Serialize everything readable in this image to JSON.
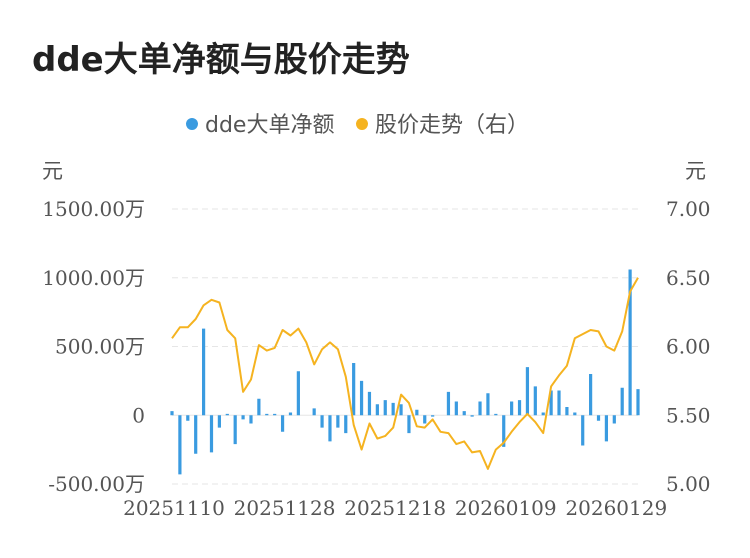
{
  "title": "dde大单净额与股价走势",
  "chart_data": {
    "type": "bar+line",
    "legend": [
      {
        "name": "dde大单净额",
        "color": "#3a9be0"
      },
      {
        "name": "股价走势（右）",
        "color": "#f5b320"
      }
    ],
    "legend_position": "top-center",
    "y_left": {
      "unit": "元",
      "ylim": [
        -500,
        1500
      ],
      "ticks": [
        {
          "v": 1500,
          "label": "1500.00万"
        },
        {
          "v": 1000,
          "label": "1000.00万"
        },
        {
          "v": 500,
          "label": "500.00万"
        },
        {
          "v": 0,
          "label": "0"
        },
        {
          "v": -500,
          "label": "-500.00万"
        }
      ]
    },
    "y_right": {
      "unit": "元",
      "ylim": [
        5.0,
        7.0
      ],
      "ticks": [
        {
          "v": 7.0,
          "label": "7.00"
        },
        {
          "v": 6.5,
          "label": "6.50"
        },
        {
          "v": 6.0,
          "label": "6.00"
        },
        {
          "v": 5.5,
          "label": "5.50"
        },
        {
          "v": 5.0,
          "label": "5.00"
        }
      ]
    },
    "x_labels": [
      {
        "i": 0,
        "label": "20251110"
      },
      {
        "i": 14,
        "label": "20251128"
      },
      {
        "i": 28,
        "label": "20251218"
      },
      {
        "i": 42,
        "label": "20260109"
      },
      {
        "i": 56,
        "label": "20260129"
      }
    ],
    "grid": true,
    "dde_net": [
      30,
      -430,
      -40,
      -280,
      630,
      -270,
      -90,
      10,
      -210,
      -30,
      -60,
      120,
      10,
      10,
      -120,
      20,
      320,
      0,
      50,
      -90,
      -190,
      -90,
      -130,
      380,
      250,
      170,
      80,
      110,
      90,
      80,
      -130,
      40,
      -60,
      -10,
      0,
      170,
      100,
      30,
      -10,
      100,
      160,
      10,
      -230,
      100,
      110,
      350,
      210,
      20,
      180,
      180,
      60,
      20,
      -220,
      300,
      -40,
      -190,
      -60,
      200,
      1060,
      190
    ],
    "price": [
      6.06,
      6.14,
      6.14,
      6.2,
      6.3,
      6.34,
      6.32,
      6.12,
      6.06,
      5.67,
      5.76,
      6.01,
      5.97,
      5.99,
      6.12,
      6.08,
      6.13,
      6.03,
      5.87,
      5.98,
      6.03,
      5.98,
      5.78,
      5.43,
      5.25,
      5.44,
      5.33,
      5.35,
      5.41,
      5.65,
      5.59,
      5.42,
      5.41,
      5.47,
      5.38,
      5.37,
      5.29,
      5.31,
      5.23,
      5.24,
      5.11,
      5.25,
      5.3,
      5.38,
      5.45,
      5.51,
      5.45,
      5.37,
      5.71,
      5.79,
      5.86,
      6.06,
      6.09,
      6.12,
      6.11,
      6.0,
      5.97,
      6.11,
      6.4,
      6.5
    ]
  }
}
